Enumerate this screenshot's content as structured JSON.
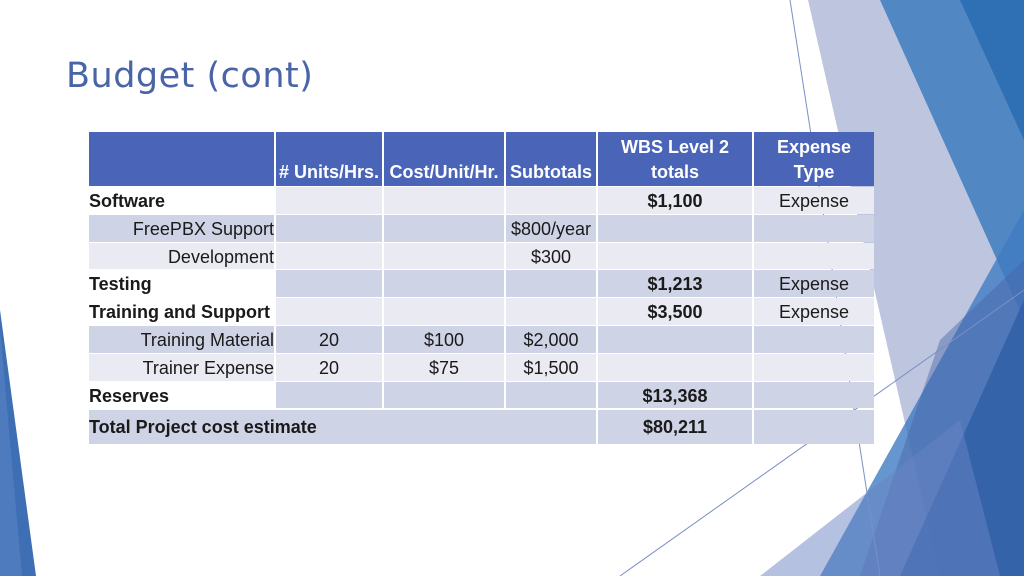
{
  "slide": {
    "title": "Budget (cont)"
  },
  "table": {
    "headers": {
      "units": "# Units/Hrs.",
      "cost": "Cost/Unit/Hr.",
      "subtotals": "Subtotals",
      "wbs_line1": "WBS Level 2",
      "wbs_line2": "totals",
      "expense_line1": "Expense",
      "expense_line2": "Type"
    },
    "rows": [
      {
        "label": "Software",
        "units": "",
        "cost": "",
        "subtotal": "",
        "wbs": "$1,100",
        "type": "Expense"
      },
      {
        "label": "FreePBX Support",
        "units": "",
        "cost": "",
        "subtotal": "$800/year",
        "wbs": "",
        "type": ""
      },
      {
        "label": "Development",
        "units": "",
        "cost": "",
        "subtotal": "$300",
        "wbs": "",
        "type": ""
      },
      {
        "label": "Testing",
        "units": "",
        "cost": "",
        "subtotal": "",
        "wbs": "$1,213",
        "type": "Expense"
      },
      {
        "label": "Training and Support",
        "units": "",
        "cost": "",
        "subtotal": "",
        "wbs": "$3,500",
        "type": "Expense"
      },
      {
        "label": "Training Material",
        "units": "20",
        "cost": "$100",
        "subtotal": "$2,000",
        "wbs": "",
        "type": ""
      },
      {
        "label": "Trainer Expense",
        "units": "20",
        "cost": "$75",
        "subtotal": "$1,500",
        "wbs": "",
        "type": ""
      },
      {
        "label": "Reserves",
        "units": "",
        "cost": "",
        "subtotal": "",
        "wbs": "$13,368",
        "type": ""
      }
    ],
    "total": {
      "label": "Total Project cost estimate",
      "wbs": "$80,211"
    }
  },
  "colors": {
    "title": "#4a64a8",
    "header": "#4a64b8",
    "row_alt": "#cfd3e6",
    "row_light": "#e9eaf2",
    "accent_blue": "#3b78b8"
  }
}
